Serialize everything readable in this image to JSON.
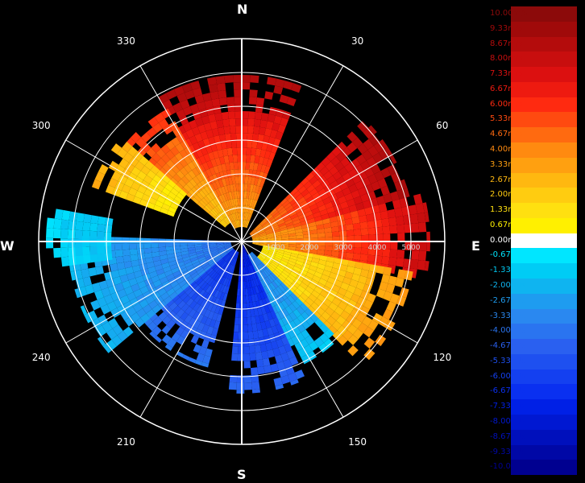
{
  "chart_data": {
    "type": "polar-heatmap",
    "title": "",
    "cardinals": {
      "north": "N",
      "east": "E",
      "south": "S",
      "west": "W"
    },
    "bearing_labels": [
      "30",
      "60",
      "120",
      "150",
      "210",
      "240",
      "300",
      "330"
    ],
    "bearing_degrees": [
      30,
      60,
      120,
      150,
      210,
      240,
      300,
      330
    ],
    "range_labels": [
      "1000",
      "2000",
      "3000",
      "4000",
      "5000"
    ],
    "range_max": 5600,
    "rings": 6,
    "unit": "m/s",
    "colorbar": {
      "labels": [
        "10.00m/s",
        "9.33m/s",
        "8.67m/s",
        "8.00m/s",
        "7.33m/s",
        "6.67m/s",
        "6.00m/s",
        "5.33m/s",
        "4.67m/s",
        "4.00m/s",
        "3.33m/s",
        "2.67m/s",
        "2.00m/s",
        "1.33m/s",
        "0.67m/s",
        "0.00m/s",
        "-0.67m/s",
        "-1.33m/s",
        "-2.00m/s",
        "-2.67m/s",
        "-3.33m/s",
        "-4.00m/s",
        "-4.67m/s",
        "-5.33m/s",
        "-6.00m/s",
        "-6.67m/s",
        "-7.33m/s",
        "-8.00m/s",
        "-8.67m/s",
        "-9.33m/s",
        "-10.00m/s"
      ],
      "colors": [
        "#8c0a0a",
        "#a00a0a",
        "#b40c0c",
        "#c80e0e",
        "#dc1010",
        "#ee1a10",
        "#ff2a10",
        "#ff4a10",
        "#ff6a10",
        "#ff8a10",
        "#ffa010",
        "#ffb810",
        "#ffcc10",
        "#ffe010",
        "#fff000",
        "#ffffff",
        "#00e6ff",
        "#00ccf5",
        "#0fb4f0",
        "#1e9cf0",
        "#2a88f0",
        "#2a74f0",
        "#2a60f0",
        "#1e50f0",
        "#1440f0",
        "#0a30f0",
        "#0020e6",
        "#0018d2",
        "#0010bc",
        "#0008a6",
        "#000090"
      ],
      "value_range": [
        -10,
        10
      ]
    },
    "sectors": [
      {
        "az_start": 330,
        "az_end": 380,
        "r_start": 400,
        "r_end": 4600,
        "v_start": 3.0,
        "v_end": 9.0
      },
      {
        "az_start": 310,
        "az_end": 330,
        "r_start": 600,
        "r_end": 4200,
        "v_start": 2.0,
        "v_end": 6.0
      },
      {
        "az_start": 290,
        "az_end": 310,
        "r_start": 2000,
        "r_end": 4400,
        "v_start": 0.8,
        "v_end": 3.0
      },
      {
        "az_start": 45,
        "az_end": 75,
        "r_start": 300,
        "r_end": 4800,
        "v_start": 4.0,
        "v_end": 9.0
      },
      {
        "az_start": 75,
        "az_end": 100,
        "r_start": 300,
        "r_end": 5200,
        "v_start": 3.0,
        "v_end": 8.0
      },
      {
        "az_start": 100,
        "az_end": 135,
        "r_start": 600,
        "r_end": 4800,
        "v_start": 0.8,
        "v_end": 3.5
      },
      {
        "az_start": 135,
        "az_end": 155,
        "r_start": 400,
        "r_end": 3800,
        "v_start": -3.5,
        "v_end": -1.5
      },
      {
        "az_start": 155,
        "az_end": 185,
        "r_start": 100,
        "r_end": 4200,
        "v_start": -7.5,
        "v_end": -4.5
      },
      {
        "az_start": 195,
        "az_end": 230,
        "r_start": 300,
        "r_end": 3600,
        "v_start": -6.5,
        "v_end": -4.0
      },
      {
        "az_start": 230,
        "az_end": 270,
        "r_start": 300,
        "r_end": 4800,
        "v_start": -4.0,
        "v_end": -2.0
      },
      {
        "az_start": 262,
        "az_end": 280,
        "r_start": 3600,
        "r_end": 5400,
        "v_start": -1.5,
        "v_end": -1.0
      }
    ],
    "legend_position": "right",
    "grid": true
  }
}
